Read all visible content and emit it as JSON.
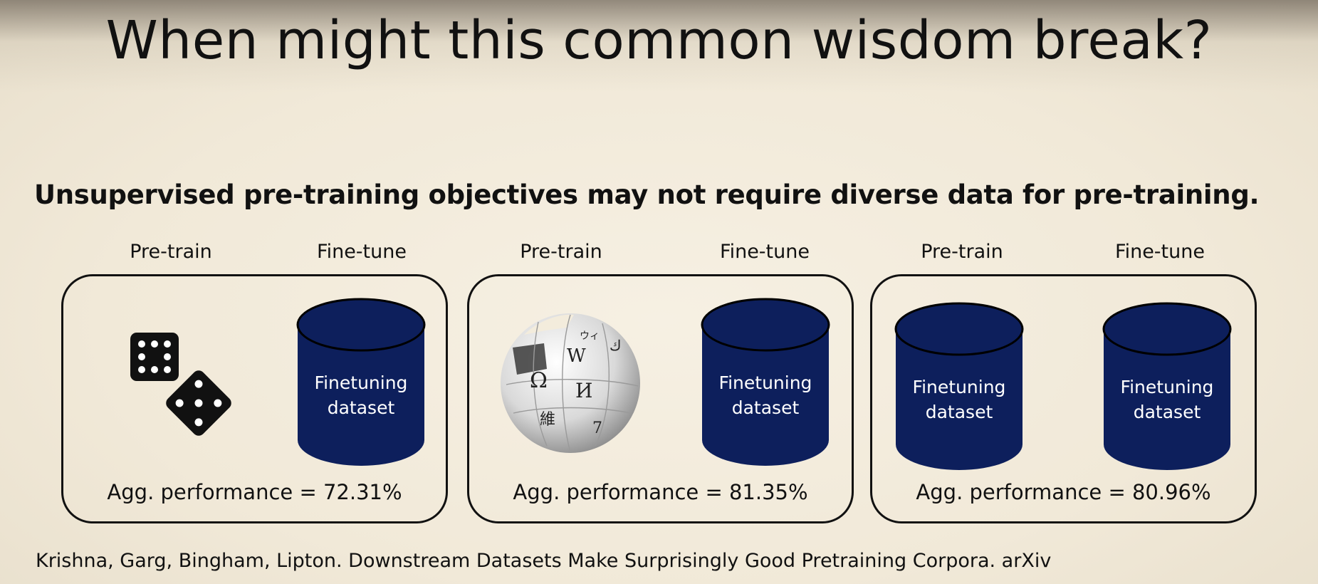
{
  "slide": {
    "title": "When might this common wisdom break?",
    "subtitle": "Unsupervised pre-training objectives may not require diverse data for pre-training.",
    "citation": "Krishna, Garg, Bingham, Lipton. Downstream Datasets Make Surprisingly Good Pretraining Corpora. arXiv"
  },
  "panels": [
    {
      "pretrain_label": "Pre-train",
      "finetune_label": "Fine-tune",
      "pretrain_icon": "dice-icon",
      "finetune_dataset": "Finetuning dataset",
      "performance": "Agg. performance = 72.31%"
    },
    {
      "pretrain_label": "Pre-train",
      "finetune_label": "Fine-tune",
      "pretrain_icon": "wikipedia-globe-icon",
      "finetune_dataset": "Finetuning dataset",
      "performance": "Agg. performance = 81.35%"
    },
    {
      "pretrain_label": "Pre-train",
      "finetune_label": "Fine-tune",
      "pretrain_dataset": "Finetuning dataset",
      "finetune_dataset": "Finetuning dataset",
      "performance": "Agg. performance = 80.96%"
    }
  ],
  "wiki_glyphs": [
    "Ω",
    "W",
    "И",
    "維",
    "ウィ",
    "ك",
    "7"
  ],
  "colors": {
    "cylinder_fill": "#0d1f5c",
    "panel_border": "#111111",
    "background": "#f3ecdc"
  }
}
